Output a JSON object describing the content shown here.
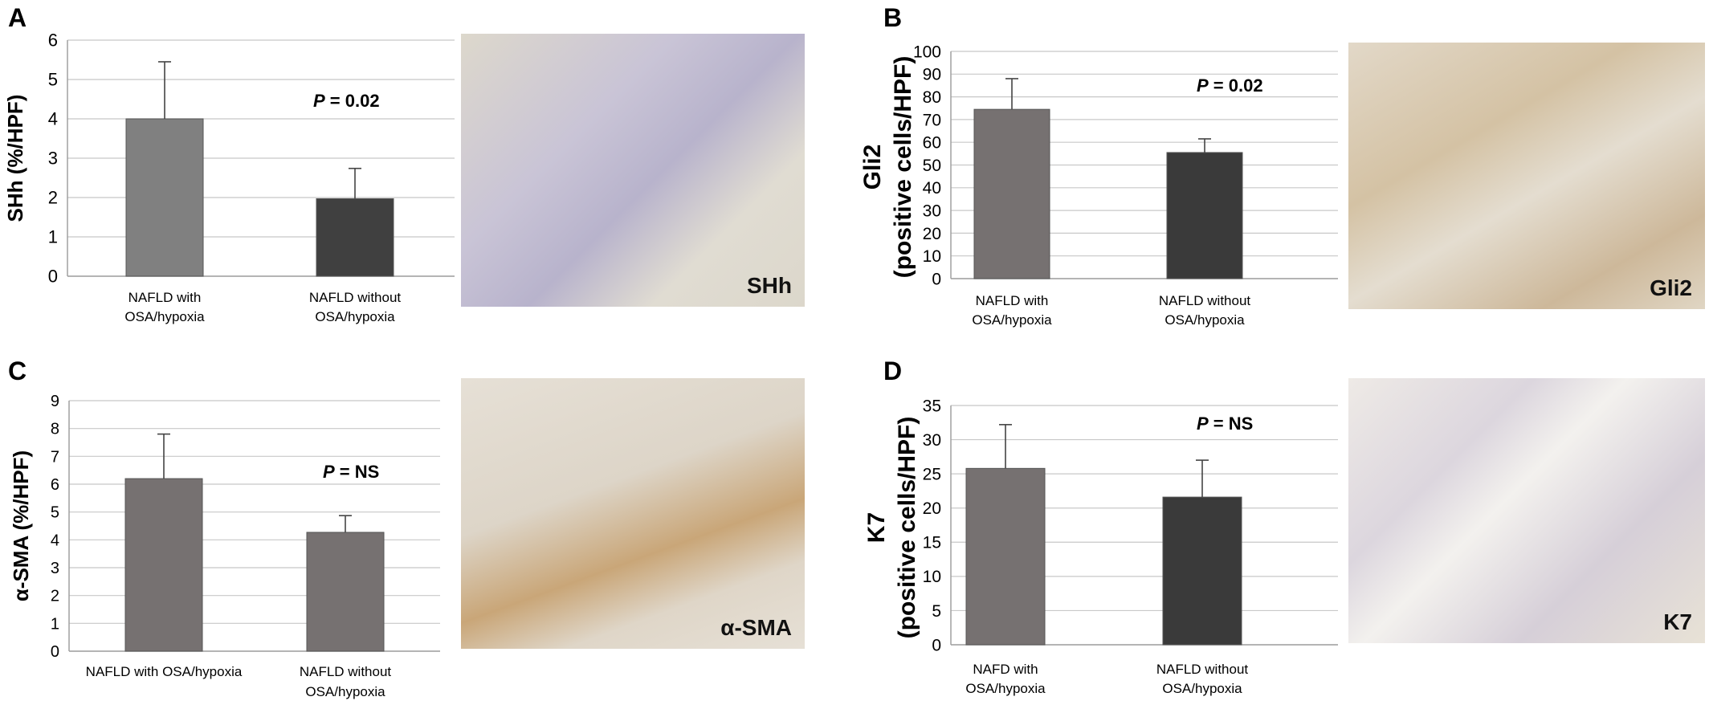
{
  "panels": [
    {
      "id": "A",
      "micrograph_label": "SHh",
      "chart_data": {
        "type": "bar",
        "ylabel": "SHh (%/HPF)",
        "categories": [
          [
            "NAFLD with",
            "OSA/hypoxia"
          ],
          [
            "NAFLD without",
            "OSA/hypoxia"
          ]
        ],
        "values": [
          4.0,
          1.97
        ],
        "errors": [
          1.45,
          0.77
        ],
        "ylim": [
          0,
          6
        ],
        "yticks": [
          "0",
          "1",
          "2",
          "3",
          "4",
          "5",
          "6"
        ],
        "grid": true,
        "annotation": {
          "italic": "P",
          "text": " = 0.02"
        },
        "bar_colors": [
          "#808080",
          "#404040"
        ]
      }
    },
    {
      "id": "B",
      "micrograph_label": "Gli2",
      "chart_data": {
        "type": "bar",
        "ylabel": [
          "Gli2",
          "(positive cells/HPF)"
        ],
        "categories": [
          [
            "NAFLD with",
            "OSA/hypoxia"
          ],
          [
            "NAFLD without",
            "OSA/hypoxia"
          ]
        ],
        "values": [
          74.5,
          55.5
        ],
        "errors": [
          13.5,
          6.0
        ],
        "ylim": [
          0,
          100
        ],
        "yticks": [
          "0",
          "10",
          "20",
          "30",
          "40",
          "50",
          "60",
          "70",
          "80",
          "90",
          "100"
        ],
        "grid": true,
        "annotation": {
          "italic": "P",
          "text": " = 0.02"
        },
        "bar_colors": [
          "#767171",
          "#3a3a3a"
        ]
      }
    },
    {
      "id": "C",
      "micrograph_label": "α-SMA",
      "chart_data": {
        "type": "bar",
        "ylabel": "α-SMA (%/HPF)",
        "categories": [
          [
            "NAFLD with OSA/hypoxia"
          ],
          [
            "NAFLD without",
            "OSA/hypoxia"
          ]
        ],
        "values": [
          6.2,
          4.27
        ],
        "errors": [
          1.6,
          0.6
        ],
        "ylim": [
          0,
          9
        ],
        "yticks": [
          "0",
          "1",
          "2",
          "3",
          "4",
          "5",
          "6",
          "7",
          "8",
          "9"
        ],
        "grid": true,
        "annotation": {
          "italic": "P",
          "text": " = NS"
        },
        "bar_colors": [
          "#767171",
          "#767171"
        ]
      }
    },
    {
      "id": "D",
      "micrograph_label": "K7",
      "chart_data": {
        "type": "bar",
        "ylabel": [
          "K7",
          "(positive cells/HPF)"
        ],
        "categories": [
          [
            "NAFD with",
            "OSA/hypoxia"
          ],
          [
            "NAFLD without",
            "OSA/hypoxia"
          ]
        ],
        "values": [
          25.8,
          21.6
        ],
        "errors": [
          6.4,
          5.4
        ],
        "ylim": [
          0,
          35
        ],
        "yticks": [
          "0",
          "5",
          "10",
          "15",
          "20",
          "25",
          "30",
          "35"
        ],
        "grid": true,
        "annotation": {
          "italic": "P",
          "text": " = NS"
        },
        "bar_colors": [
          "#767171",
          "#3a3a3a"
        ]
      }
    }
  ]
}
